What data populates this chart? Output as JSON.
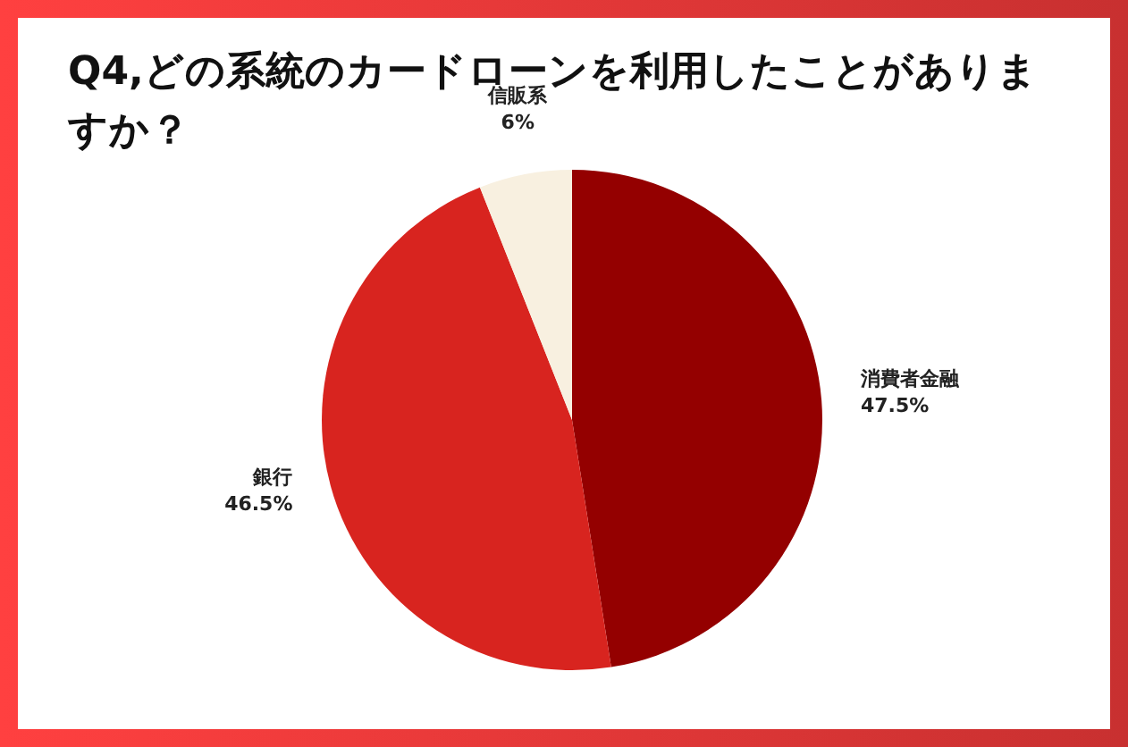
{
  "chart_data": {
    "type": "pie",
    "title": "Q4,どの系統のカードローンを利用したことがありますか？",
    "categories": [
      "消費者金融",
      "銀行",
      "信販系"
    ],
    "values": [
      47.5,
      46.5,
      6
    ],
    "colors": [
      "#940000",
      "#d8241f",
      "#f8f0e0"
    ],
    "value_labels": [
      "47.5%",
      "46.5%",
      "6%"
    ]
  }
}
